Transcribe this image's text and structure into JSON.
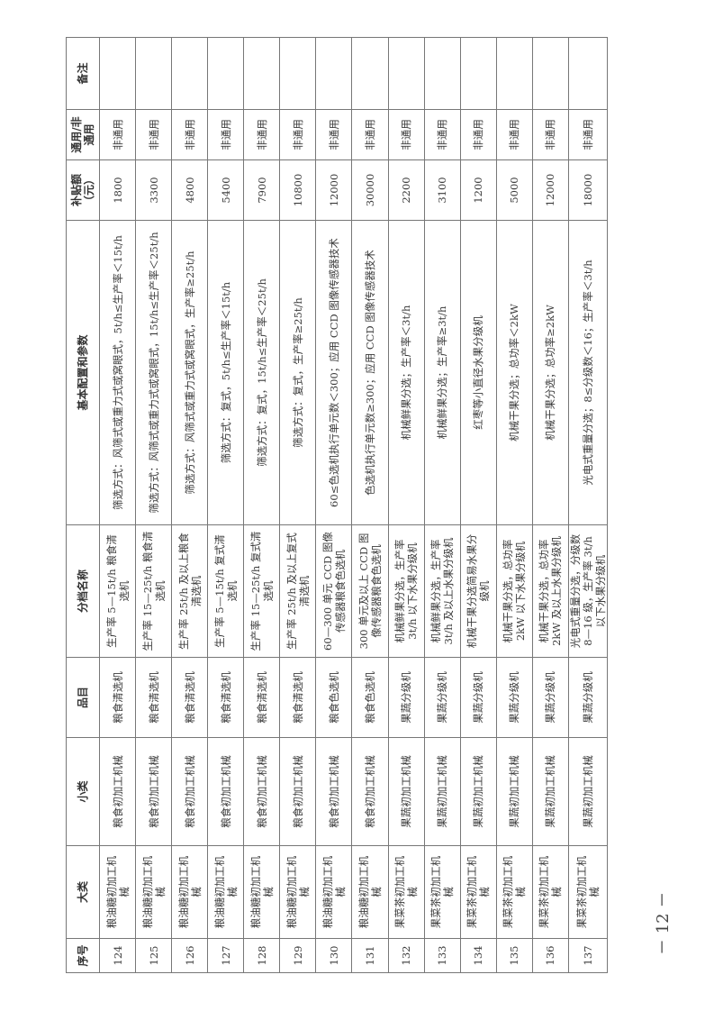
{
  "headers": [
    "序号",
    "大类",
    "小类",
    "品目",
    "分档名称",
    "基本配置和参数",
    "补贴额（元）",
    "通用/非通用",
    "备注"
  ],
  "rows": [
    [
      "124",
      "粮油糖初加工机械",
      "粮食初加工机械",
      "粮食清选机",
      "生产率 5—15t/h 粮食清选机",
      "筛选方式：风筛式或重力式或窝眼式，5t/h≤生产率＜15t/h",
      "1800",
      "非通用",
      ""
    ],
    [
      "125",
      "粮油糖初加工机械",
      "粮食初加工机械",
      "粮食清选机",
      "生产率 15—25t/h 粮食清选机",
      "筛选方式：风筛式或重力式或窝眼式，15t/h≤生产率＜25t/h",
      "3300",
      "非通用",
      ""
    ],
    [
      "126",
      "粮油糖初加工机械",
      "粮食初加工机械",
      "粮食清选机",
      "生产率 25t/h 及以上粮食清选机",
      "筛选方式：风筛式或重力式或窝眼式，生产率≥25t/h",
      "4800",
      "非通用",
      ""
    ],
    [
      "127",
      "粮油糖初加工机械",
      "粮食初加工机械",
      "粮食清选机",
      "生产率 5—15t/h 复式清选机",
      "筛选方式：复式，5t/h≤生产率＜15t/h",
      "5400",
      "非通用",
      ""
    ],
    [
      "128",
      "粮油糖初加工机械",
      "粮食初加工机械",
      "粮食清选机",
      "生产率 15—25t/h 复式清选机",
      "筛选方式：复式，15t/h≤生产率＜25t/h",
      "7900",
      "非通用",
      ""
    ],
    [
      "129",
      "粮油糖初加工机械",
      "粮食初加工机械",
      "粮食清选机",
      "生产率 25t/h 及以上复式清选机",
      "筛选方式：复式，生产率≥25t/h",
      "10800",
      "非通用",
      ""
    ],
    [
      "130",
      "粮油糖初加工机械",
      "粮食初加工机械",
      "粮食色选机",
      "60—300 单元 CCD 图像传感器粮食色选机",
      "60≤色选机执行单元数＜300；应用 CCD 图像传感器技术",
      "12000",
      "非通用",
      ""
    ],
    [
      "131",
      "粮油糖初加工机械",
      "粮食初加工机械",
      "粮食色选机",
      "300 单元及以上 CCD 图像传感器粮食色选机",
      "色选机执行单元数≥300；应用 CCD 图像传感器技术",
      "30000",
      "非通用",
      ""
    ],
    [
      "132",
      "果菜茶初加工机械",
      "果蔬初加工机械",
      "果蔬分级机",
      "机械鲜果分选，生产率 3t/h 以下水果分级机",
      "机械鲜果分选；生产率＜3t/h",
      "2200",
      "非通用",
      ""
    ],
    [
      "133",
      "果菜茶初加工机械",
      "果蔬初加工机械",
      "果蔬分级机",
      "机械鲜果分选，生产率 3t/h 及以上水果分级机",
      "机械鲜果分选；生产率≥3t/h",
      "3100",
      "非通用",
      ""
    ],
    [
      "134",
      "果菜茶初加工机械",
      "果蔬初加工机械",
      "果蔬分级机",
      "机械干果分选简易水果分级机",
      "红枣等小直径水果分级机",
      "1200",
      "非通用",
      ""
    ],
    [
      "135",
      "果菜茶初加工机械",
      "果蔬初加工机械",
      "果蔬分级机",
      "机械干果分选，总功率 2kW 以下水果分级机",
      "机械干果分选；总功率＜2kW",
      "5000",
      "非通用",
      ""
    ],
    [
      "136",
      "果菜茶初加工机械",
      "果蔬初加工机械",
      "果蔬分级机",
      "机械干果分选，总功率 2kW 及以上水果分级机",
      "机械干果分选；总功率≥2kW",
      "12000",
      "非通用",
      ""
    ],
    [
      "137",
      "果菜茶初加工机械",
      "果蔬初加工机械",
      "果蔬分级机",
      "光电式重量分选，分级数 8—16 级，生产率 3t/h 以下水果分级机",
      "光电式重量分选；8≤分级数＜16；生产率＜3t/h",
      "18000",
      "非通用",
      ""
    ]
  ],
  "page_number": "－ 12 －"
}
